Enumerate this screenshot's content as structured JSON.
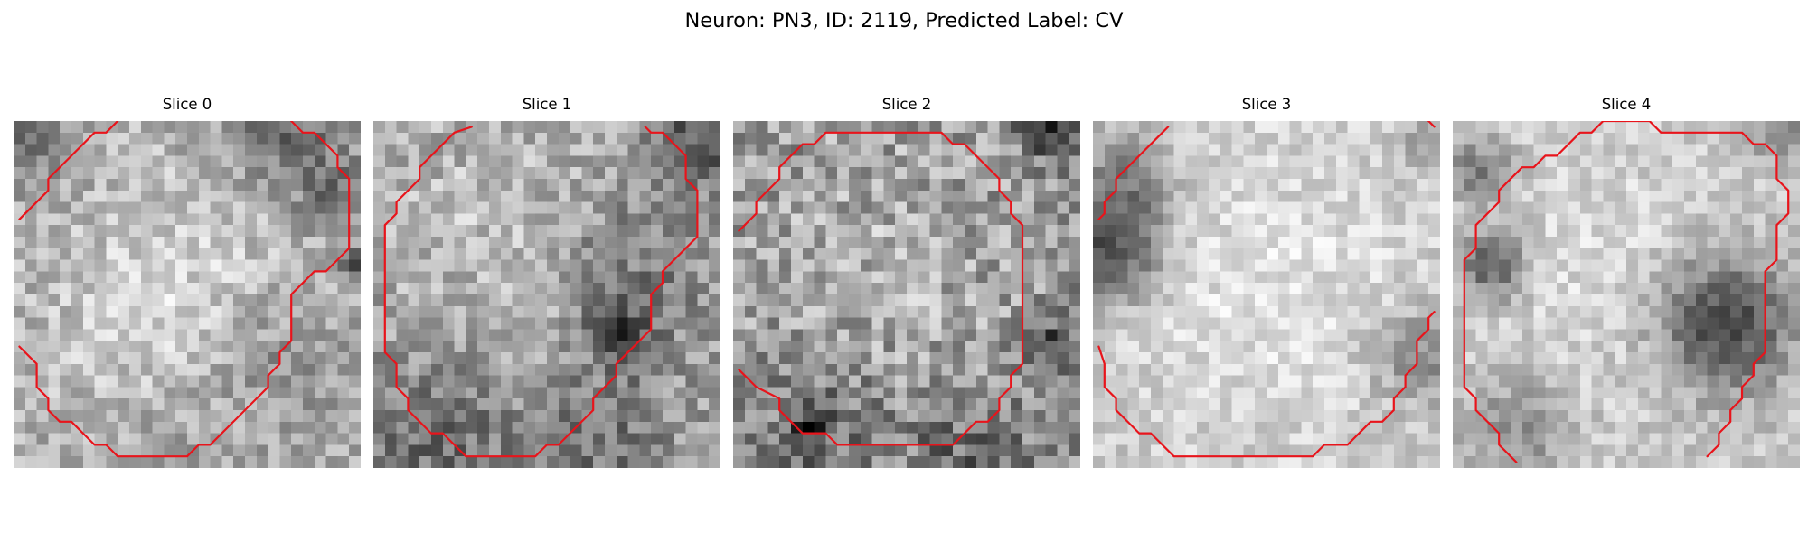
{
  "figure": {
    "title": "Neuron: PN3, ID: 2119, Predicted Label: CV"
  },
  "colors": {
    "contour": "#e8141b",
    "background": "#ffffff",
    "colormap": "gray"
  },
  "slices": [
    {
      "title": "Slice 0",
      "brightness": {
        "base": 172,
        "spread": 40,
        "dark_spots": [
          [
            1,
            1,
            3,
            60
          ],
          [
            23,
            0,
            4,
            70
          ],
          [
            27,
            6,
            2,
            55
          ],
          [
            29,
            12,
            1,
            90
          ],
          [
            22,
            20,
            4,
            35
          ],
          [
            12,
            26,
            5,
            25
          ]
        ],
        "bright_spots": [
          [
            14,
            13,
            8,
            35
          ],
          [
            10,
            22,
            6,
            20
          ]
        ]
      },
      "contours": [
        [
          [
            0.5,
            8.5
          ],
          [
            3,
            6
          ],
          [
            3,
            5
          ],
          [
            7,
            1
          ],
          [
            8,
            1
          ],
          [
            9,
            0
          ]
        ],
        [
          [
            24,
            0
          ],
          [
            25,
            1
          ],
          [
            26,
            1
          ],
          [
            28,
            3
          ],
          [
            28,
            4
          ],
          [
            29,
            5
          ],
          [
            29,
            11
          ],
          [
            27,
            13
          ],
          [
            26,
            13
          ],
          [
            24,
            15
          ],
          [
            24,
            19
          ],
          [
            23,
            20
          ],
          [
            23,
            21
          ],
          [
            22,
            22
          ],
          [
            22,
            23
          ],
          [
            17,
            28
          ],
          [
            16,
            28
          ],
          [
            15,
            29
          ],
          [
            9,
            29
          ],
          [
            8,
            28
          ],
          [
            7,
            28
          ],
          [
            5,
            26
          ],
          [
            4,
            26
          ],
          [
            3,
            25
          ],
          [
            3,
            24
          ],
          [
            2,
            23
          ],
          [
            2,
            21
          ],
          [
            0.5,
            19.5
          ]
        ]
      ]
    },
    {
      "title": "Slice 1",
      "brightness": {
        "base": 160,
        "spread": 45,
        "dark_spots": [
          [
            28,
            1,
            3,
            75
          ],
          [
            22,
            12,
            5,
            40
          ],
          [
            21,
            18,
            2,
            85
          ],
          [
            5,
            27,
            5,
            50
          ],
          [
            19,
            27,
            4,
            45
          ]
        ],
        "bright_spots": [
          [
            10,
            9,
            8,
            30
          ]
        ]
      },
      "contours": [
        [
          [
            8.5,
            0.5
          ],
          [
            7,
            1
          ],
          [
            5,
            3
          ],
          [
            4,
            4
          ],
          [
            4,
            5
          ],
          [
            2,
            7
          ],
          [
            2,
            8
          ],
          [
            1,
            9
          ],
          [
            1,
            20
          ],
          [
            2,
            21
          ],
          [
            2,
            23
          ],
          [
            3,
            24
          ],
          [
            3,
            25
          ],
          [
            5,
            27
          ],
          [
            6,
            27
          ],
          [
            8,
            29
          ],
          [
            14,
            29
          ],
          [
            15,
            28
          ],
          [
            16,
            28
          ],
          [
            19,
            25
          ],
          [
            19,
            24
          ],
          [
            21,
            22
          ],
          [
            21,
            21
          ],
          [
            24,
            18
          ],
          [
            24,
            15
          ],
          [
            25,
            14
          ],
          [
            25,
            13
          ],
          [
            27,
            11
          ],
          [
            28,
            10
          ],
          [
            28,
            6
          ],
          [
            27,
            5
          ],
          [
            27,
            3
          ],
          [
            25,
            1
          ],
          [
            24,
            1
          ],
          [
            23.5,
            0.5
          ]
        ]
      ]
    },
    {
      "title": "Slice 2",
      "brightness": {
        "base": 150,
        "spread": 55,
        "dark_spots": [
          [
            27,
            0,
            2,
            90
          ],
          [
            27,
            19,
            2,
            80
          ],
          [
            7,
            26,
            4,
            45
          ],
          [
            20,
            28,
            4,
            45
          ],
          [
            6,
            26,
            1,
            100
          ]
        ],
        "bright_spots": [
          [
            13,
            12,
            9,
            25
          ]
        ]
      },
      "contours": [
        [
          [
            0.5,
            9.5
          ],
          [
            2,
            8
          ],
          [
            2,
            7
          ],
          [
            4,
            5
          ],
          [
            4,
            4
          ],
          [
            6,
            2
          ],
          [
            7,
            2
          ],
          [
            8,
            1
          ],
          [
            18,
            1
          ],
          [
            19,
            2
          ],
          [
            20,
            2
          ],
          [
            23,
            5
          ],
          [
            23,
            6
          ],
          [
            24,
            7
          ],
          [
            24,
            8
          ],
          [
            25,
            9
          ],
          [
            25,
            21
          ],
          [
            24,
            22
          ],
          [
            24,
            23
          ],
          [
            23,
            24
          ],
          [
            23,
            25
          ],
          [
            22,
            26
          ],
          [
            21,
            26
          ],
          [
            19,
            28
          ],
          [
            9,
            28
          ],
          [
            8,
            27
          ],
          [
            6,
            27
          ],
          [
            5,
            26
          ],
          [
            4,
            25
          ],
          [
            4,
            24
          ],
          [
            2,
            23
          ],
          [
            0.5,
            21.5
          ]
        ]
      ]
    },
    {
      "title": "Slice 3",
      "brightness": {
        "base": 200,
        "spread": 30,
        "dark_spots": [
          [
            1,
            11,
            3,
            120
          ],
          [
            2,
            5,
            3,
            80
          ],
          [
            28,
            20,
            3,
            70
          ],
          [
            29,
            1,
            2,
            55
          ]
        ],
        "bright_spots": [
          [
            15,
            14,
            10,
            25
          ]
        ]
      },
      "contours": [
        [
          [
            0.5,
            8.5
          ],
          [
            1,
            8
          ],
          [
            1,
            7
          ],
          [
            2,
            6
          ],
          [
            2,
            5
          ],
          [
            6,
            1
          ],
          [
            6.5,
            0.5
          ]
        ],
        [
          [
            29,
            0
          ],
          [
            29.5,
            0.5
          ]
        ],
        [
          [
            29.5,
            16.5
          ],
          [
            29,
            17
          ],
          [
            29,
            18
          ],
          [
            28,
            19
          ],
          [
            28,
            21
          ],
          [
            27,
            22
          ],
          [
            27,
            23
          ],
          [
            26,
            24
          ],
          [
            26,
            25
          ],
          [
            25,
            26
          ],
          [
            24,
            26
          ],
          [
            22,
            28
          ],
          [
            21,
            28
          ],
          [
            20,
            28
          ],
          [
            19,
            29
          ],
          [
            7,
            29
          ],
          [
            5,
            27
          ],
          [
            4,
            27
          ],
          [
            2,
            25
          ],
          [
            2,
            24
          ],
          [
            1,
            23
          ],
          [
            1,
            21
          ],
          [
            0.5,
            19.5
          ]
        ]
      ]
    },
    {
      "title": "Slice 4",
      "brightness": {
        "base": 198,
        "spread": 30,
        "dark_spots": [
          [
            23,
            17,
            4,
            140
          ],
          [
            3,
            12,
            2,
            110
          ],
          [
            2,
            4,
            2,
            80
          ],
          [
            5,
            26,
            3,
            60
          ],
          [
            28,
            1,
            2,
            55
          ]
        ],
        "bright_spots": [
          [
            13,
            12,
            8,
            20
          ]
        ]
      },
      "contours": [
        [
          [
            5.5,
            29.5
          ],
          [
            4,
            28
          ],
          [
            4,
            27
          ],
          [
            2,
            25
          ],
          [
            2,
            24
          ],
          [
            1,
            23
          ],
          [
            1,
            12
          ],
          [
            2,
            11
          ],
          [
            2,
            9
          ],
          [
            4,
            7
          ],
          [
            4,
            6
          ],
          [
            6,
            4
          ],
          [
            7,
            4
          ],
          [
            8,
            3
          ],
          [
            9,
            3
          ],
          [
            11,
            1
          ],
          [
            12,
            1
          ],
          [
            13,
            0
          ],
          [
            17,
            0
          ],
          [
            18,
            1
          ],
          [
            25,
            1
          ],
          [
            26,
            2
          ],
          [
            27,
            2
          ],
          [
            28,
            3
          ],
          [
            28,
            5
          ],
          [
            29,
            6
          ],
          [
            29,
            8
          ],
          [
            28,
            9
          ],
          [
            28,
            12
          ],
          [
            27,
            13
          ],
          [
            27,
            20
          ],
          [
            26,
            21
          ],
          [
            26,
            22
          ],
          [
            25,
            23
          ],
          [
            25,
            24
          ],
          [
            24,
            25
          ],
          [
            24,
            26
          ],
          [
            23,
            27
          ],
          [
            23,
            28
          ],
          [
            22,
            29
          ]
        ]
      ]
    }
  ]
}
